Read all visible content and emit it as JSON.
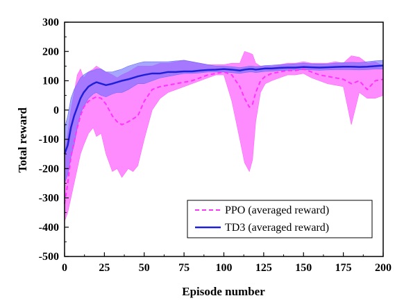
{
  "chart_data": {
    "type": "line",
    "title": "",
    "xlabel": "Episode number",
    "ylabel": "Total reward",
    "xlim": [
      0,
      200
    ],
    "ylim": [
      -500,
      300
    ],
    "xticks": [
      "0",
      "25",
      "50",
      "75",
      "100",
      "125",
      "150",
      "175",
      "200"
    ],
    "yticks": [
      "-500",
      "-400",
      "-300",
      "-200",
      "-100",
      "0",
      "100",
      "200",
      "300"
    ],
    "grid": false,
    "legend_position": "bottom-right",
    "colors": {
      "ppo_line": "#ff33ff",
      "ppo_band": "#ff66ff",
      "td3_line": "#1f1fd6",
      "td3_band": "#6a6aff"
    },
    "series": [
      {
        "name": "PPO (averaged reward)",
        "style": "dashed",
        "x": [
          0,
          2,
          4,
          6,
          8,
          10,
          12,
          15,
          18,
          20,
          23,
          26,
          30,
          33,
          36,
          40,
          43,
          46,
          50,
          55,
          60,
          65,
          70,
          75,
          80,
          85,
          90,
          95,
          100,
          105,
          110,
          113,
          116,
          118,
          120,
          123,
          126,
          130,
          135,
          140,
          145,
          150,
          155,
          160,
          165,
          170,
          175,
          180,
          185,
          190,
          195,
          200
        ],
        "y": [
          -320,
          -250,
          -160,
          -110,
          -60,
          -20,
          10,
          30,
          40,
          45,
          40,
          20,
          -20,
          -40,
          -50,
          -40,
          -30,
          -20,
          30,
          70,
          80,
          85,
          90,
          95,
          100,
          110,
          120,
          125,
          130,
          120,
          80,
          40,
          10,
          20,
          60,
          100,
          115,
          125,
          130,
          135,
          135,
          140,
          130,
          120,
          115,
          110,
          105,
          90,
          100,
          70,
          100,
          105
        ],
        "lower": [
          -380,
          -350,
          -300,
          -250,
          -200,
          -150,
          -120,
          -80,
          -60,
          -90,
          -80,
          -150,
          -210,
          -200,
          -230,
          -200,
          -210,
          -190,
          -100,
          0,
          40,
          60,
          70,
          80,
          90,
          100,
          110,
          120,
          120,
          30,
          -100,
          -180,
          -210,
          -170,
          -40,
          60,
          90,
          100,
          110,
          120,
          120,
          125,
          110,
          100,
          90,
          85,
          80,
          -50,
          60,
          40,
          40,
          50
        ],
        "upper": [
          -150,
          -80,
          0,
          60,
          120,
          140,
          110,
          130,
          140,
          150,
          140,
          130,
          120,
          110,
          120,
          130,
          140,
          150,
          150,
          150,
          160,
          160,
          165,
          170,
          165,
          160,
          155,
          155,
          155,
          160,
          160,
          200,
          195,
          190,
          160,
          150,
          150,
          150,
          155,
          160,
          160,
          165,
          160,
          160,
          160,
          165,
          160,
          185,
          180,
          160,
          165,
          150
        ]
      },
      {
        "name": "TD3 (averaged reward)",
        "style": "solid",
        "x": [
          0,
          2,
          4,
          6,
          8,
          10,
          12,
          15,
          18,
          20,
          23,
          26,
          30,
          33,
          36,
          40,
          43,
          46,
          50,
          55,
          60,
          65,
          70,
          75,
          80,
          85,
          90,
          95,
          100,
          105,
          110,
          113,
          116,
          118,
          120,
          123,
          126,
          130,
          135,
          140,
          145,
          150,
          155,
          160,
          165,
          170,
          175,
          180,
          185,
          190,
          195,
          200
        ],
        "y": [
          -150,
          -120,
          -60,
          -20,
          10,
          40,
          60,
          80,
          90,
          95,
          90,
          85,
          90,
          95,
          100,
          105,
          110,
          115,
          120,
          125,
          125,
          130,
          130,
          132,
          132,
          135,
          137,
          138,
          140,
          138,
          135,
          138,
          140,
          140,
          138,
          140,
          142,
          142,
          144,
          145,
          145,
          147,
          146,
          145,
          146,
          147,
          148,
          148,
          147,
          148,
          150,
          152
        ],
        "lower": [
          -250,
          -220,
          -160,
          -120,
          -60,
          -10,
          10,
          40,
          55,
          60,
          50,
          45,
          55,
          60,
          60,
          70,
          80,
          90,
          90,
          100,
          110,
          115,
          120,
          125,
          125,
          127,
          130,
          130,
          130,
          128,
          125,
          128,
          130,
          130,
          128,
          130,
          132,
          133,
          135,
          136,
          137,
          138,
          137,
          136,
          137,
          138,
          138,
          138,
          137,
          138,
          140,
          140
        ],
        "upper": [
          -60,
          -20,
          40,
          70,
          90,
          110,
          120,
          130,
          135,
          140,
          140,
          130,
          130,
          135,
          140,
          150,
          155,
          160,
          165,
          165,
          165,
          165,
          168,
          170,
          165,
          160,
          155,
          150,
          150,
          148,
          145,
          147,
          150,
          150,
          148,
          150,
          152,
          153,
          155,
          156,
          158,
          160,
          158,
          157,
          158,
          160,
          162,
          163,
          162,
          165,
          168,
          170
        ]
      }
    ]
  }
}
